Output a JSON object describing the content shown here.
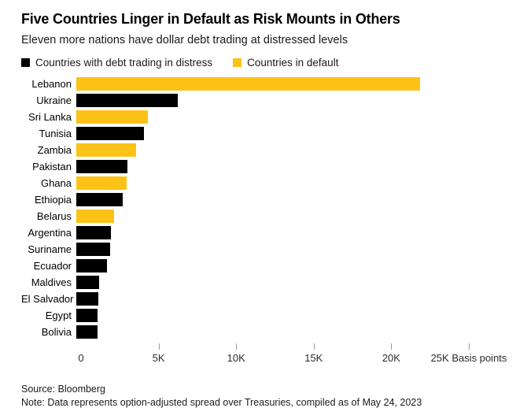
{
  "header": {
    "title": "Five Countries Linger in Default as Risk Mounts in Others",
    "subtitle": "Eleven more nations have dollar debt trading at distressed levels"
  },
  "legend": [
    {
      "key": "distress",
      "label": "Countries with debt trading in distress",
      "color": "#000000"
    },
    {
      "key": "default",
      "label": "Countries in default",
      "color": "#fcc216"
    }
  ],
  "chart_data": {
    "type": "bar",
    "orientation": "horizontal",
    "title": "Five Countries Linger in Default as Risk Mounts in Others",
    "xlabel": "Basis points",
    "ylabel": "",
    "unit": "basis points (option-adjusted spread over Treasuries)",
    "xlim": [
      0,
      27800
    ],
    "grid": false,
    "legend_position": "top",
    "categories": [
      "Lebanon",
      "Ukraine",
      "Sri Lanka",
      "Tunisia",
      "Zambia",
      "Pakistan",
      "Ghana",
      "Ethiopia",
      "Belarus",
      "Argentina",
      "Suriname",
      "Ecuador",
      "Maldives",
      "El Salvador",
      "Egypt",
      "Bolivia"
    ],
    "values": [
      22150,
      6550,
      4600,
      4350,
      3850,
      3300,
      3250,
      3000,
      2450,
      2250,
      2200,
      2000,
      1450,
      1400,
      1350,
      1350
    ],
    "statuses": [
      "default",
      "distress",
      "default",
      "distress",
      "default",
      "distress",
      "default",
      "distress",
      "default",
      "distress",
      "distress",
      "distress",
      "distress",
      "distress",
      "distress",
      "distress"
    ],
    "colors": {
      "distress": "#000000",
      "default": "#fcc216"
    },
    "x_ticks": [
      {
        "value": 0,
        "label": "0"
      },
      {
        "value": 5000,
        "label": "5K"
      },
      {
        "value": 10000,
        "label": "10K"
      },
      {
        "value": 15000,
        "label": "15K"
      },
      {
        "value": 20000,
        "label": "20K"
      },
      {
        "value": 25000,
        "label": "25K Basis points"
      }
    ]
  },
  "footer": {
    "source": "Source: Bloomberg",
    "note": "Note: Data represents option-adjusted spread over Treasuries, compiled as of May 24, 2023"
  }
}
